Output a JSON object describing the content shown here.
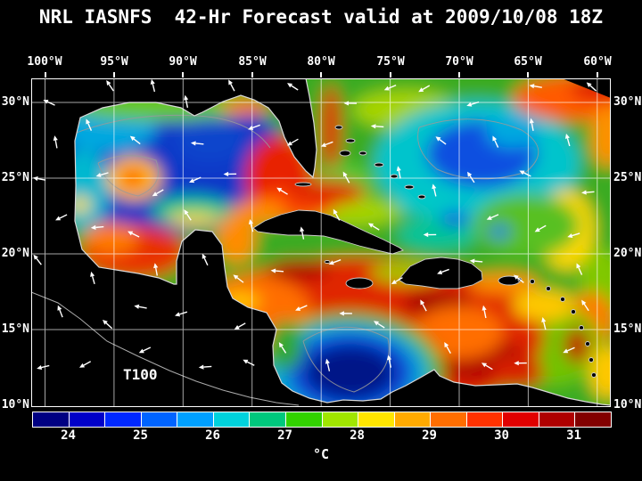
{
  "title": "NRL IASNFS  42-Hr Forecast valid at 2009/10/08 18Z",
  "colors": {
    "background": "#000000",
    "text": "#ffffff",
    "grid": "#ffffff",
    "coastline": "#d8d8d8"
  },
  "map": {
    "lon_labels": [
      "100°W",
      "95°W",
      "90°W",
      "85°W",
      "80°W",
      "75°W",
      "70°W",
      "65°W",
      "60°W"
    ],
    "lat_labels_left": [
      "30°N",
      "25°N",
      "20°N",
      "15°N",
      "10°N"
    ],
    "lat_labels_right": [
      "30°N",
      "25°N",
      "20°N",
      "15°N",
      "10°N"
    ],
    "annotation": "T100"
  },
  "colorbar": {
    "unit_label": "°C",
    "tick_labels": [
      "24",
      "25",
      "26",
      "27",
      "28",
      "29",
      "30",
      "31"
    ],
    "min": 23.5,
    "max": 31.5,
    "segment_colors": [
      "#000082",
      "#0000c8",
      "#0028ff",
      "#0064ff",
      "#00a0ff",
      "#00d2dc",
      "#00c87d",
      "#32d200",
      "#a0e600",
      "#ffe600",
      "#ffaa00",
      "#ff6e00",
      "#ff3200",
      "#e10000",
      "#af0000",
      "#820000"
    ]
  },
  "chart_data": {
    "type": "heatmap",
    "title": "NRL IASNFS  42-Hr Forecast valid at 2009/10/08 18Z",
    "x_axis": {
      "label": "longitude",
      "ticks": [
        "100°W",
        "95°W",
        "90°W",
        "85°W",
        "80°W",
        "75°W",
        "70°W",
        "65°W",
        "60°W"
      ]
    },
    "y_axis": {
      "label": "latitude",
      "ticks": [
        "30°N",
        "25°N",
        "20°N",
        "15°N",
        "10°N"
      ]
    },
    "colorbar": {
      "unit": "°C",
      "tick_values": [
        24,
        25,
        26,
        27,
        28,
        29,
        30,
        31
      ],
      "range_c": [
        23.5,
        31.5
      ]
    },
    "annotations": [
      "T100"
    ],
    "overlay": "white vector arrows across map; gray contour lines; black land mask with white coastlines",
    "approx_sst_grid_c": {
      "note": "values estimated from color field; null = land / no data",
      "lons_w": [
        100,
        95,
        90,
        85,
        80,
        75,
        70,
        65,
        60
      ],
      "lats_n": [
        30,
        25,
        20,
        15,
        10
      ],
      "values": [
        [
          null,
          26.5,
          27,
          27.5,
          28,
          27,
          26.5,
          27,
          28.5
        ],
        [
          null,
          26,
          25,
          28.5,
          27.5,
          26.5,
          25.5,
          26.5,
          27
        ],
        [
          null,
          29,
          29,
          29,
          28.5,
          27,
          27,
          27,
          27.5
        ],
        [
          null,
          null,
          29.5,
          29,
          29.5,
          29.5,
          30,
          28.5,
          28
        ],
        [
          null,
          null,
          null,
          29,
          25,
          30.5,
          30,
          29.5,
          29
        ]
      ]
    },
    "features": [
      "cool blue Gulf of Mexico interior with warm orange eddy near 93W 25.5N",
      "warm red Caribbean (29-30C) with dark-red patches 30-31C",
      "cold dark-blue gyre near 80W 12N",
      "warm red patch in NE Atlantic corner near 62W 30N"
    ]
  }
}
